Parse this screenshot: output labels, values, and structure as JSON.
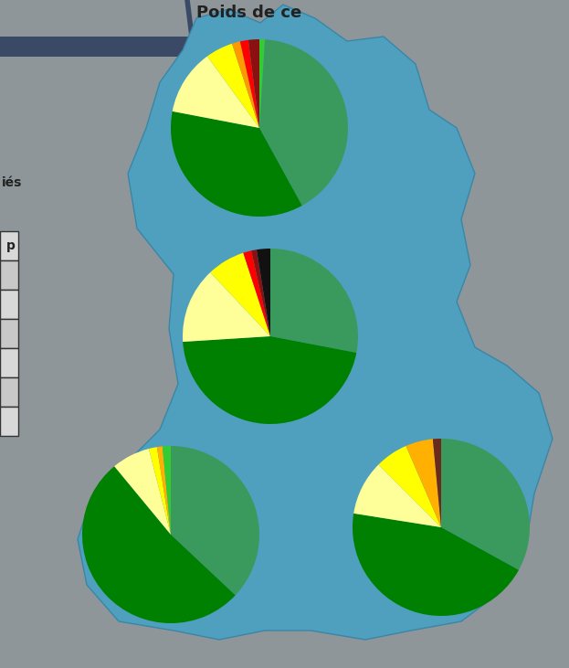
{
  "title": "Poids de ce",
  "side_text": "iés",
  "table": {
    "rows": [
      [
        "p"
      ],
      [
        ""
      ],
      [
        ""
      ],
      [
        ""
      ],
      [
        ""
      ],
      [
        ""
      ],
      [
        ""
      ]
    ]
  },
  "chart_data": [
    {
      "type": "pie",
      "values": [
        1,
        41,
        36,
        12,
        5,
        1.5,
        1.5,
        2
      ],
      "colors": [
        "#33cc33",
        "#3a9a5e",
        "#008000",
        "#ffff99",
        "#ffff00",
        "#ff9900",
        "#ff0000",
        "#8b1010"
      ]
    },
    {
      "type": "pie",
      "values": [
        28,
        46,
        14,
        7,
        1.5,
        1,
        2.5
      ],
      "colors": [
        "#3a9a5e",
        "#008000",
        "#ffff99",
        "#ffff00",
        "#ff0000",
        "#8b1010",
        "#111111"
      ]
    },
    {
      "type": "pie",
      "values": [
        37,
        52,
        7,
        1.5,
        1,
        1.5
      ],
      "colors": [
        "#3a9a5e",
        "#008000",
        "#ffff99",
        "#ffff00",
        "#ffb000",
        "#33cc33"
      ]
    },
    {
      "type": "pie",
      "values": [
        33,
        44.5,
        10,
        6,
        5,
        1.5
      ],
      "colors": [
        "#3a9a5e",
        "#008000",
        "#ffff99",
        "#ffff00",
        "#ffb000",
        "#6b2a1a"
      ]
    }
  ]
}
